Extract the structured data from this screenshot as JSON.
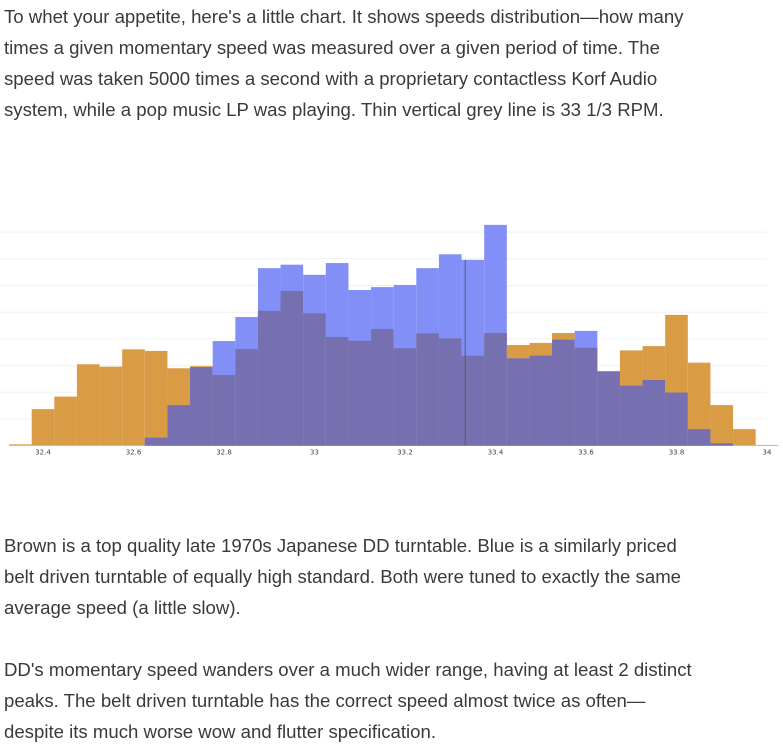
{
  "paragraphs": [
    {
      "lines": [
        "To whet your appetite, here's a little chart. It shows speeds distribution—how many",
        "times a given momentary speed was measured over a given period of time. The",
        "speed was taken 5000 times a second with a proprietary contactless Korf Audio",
        "system, while a pop music LP was playing. Thin vertical grey line is 33 1/3 RPM."
      ]
    },
    {
      "lines": [
        "Brown is a top quality late 1970s Japanese DD turntable. Blue is a similarly priced",
        "belt driven turntable of equally high standard. Both were tuned to exactly the same",
        "average speed (a little slow)."
      ]
    },
    {
      "lines": [
        "DD's momentary speed wanders over a much wider range, having at least 2 distinct",
        "peaks. The belt driven turntable has the correct speed almost twice as often—",
        "despite its much worse wow and flutter specification."
      ]
    }
  ],
  "chart_data": {
    "type": "bar",
    "subtype": "overlaid histogram",
    "bin_width": 0.05,
    "x": [
      32.35,
      32.4,
      32.45,
      32.5,
      32.55,
      32.6,
      32.65,
      32.7,
      32.75,
      32.8,
      32.85,
      32.9,
      32.95,
      33.0,
      33.05,
      33.1,
      33.15,
      33.2,
      33.25,
      33.3,
      33.35,
      33.4,
      33.45,
      33.5,
      33.55,
      33.6,
      33.65,
      33.7,
      33.75,
      33.8,
      33.85,
      33.9,
      33.95,
      34.0
    ],
    "series": [
      {
        "color": "#D99C45",
        "values": [
          0.5,
          13.7,
          18.4,
          30.5,
          29.6,
          36.1,
          35.5,
          29.0,
          29.8,
          26.5,
          36.2,
          50.5,
          58.0,
          49.6,
          40.7,
          39.3,
          43.7,
          36.5,
          42.1,
          40.2,
          33.7,
          42.2,
          37.7,
          38.5,
          42.2,
          36.7,
          28.0,
          35.7,
          37.3,
          49.0,
          31.1,
          15.2,
          6.2,
          0.3
        ]
      },
      {
        "color": "#828FF6",
        "values": [
          0,
          0,
          0,
          0,
          0,
          0,
          3.0,
          15.2,
          29.4,
          39.2,
          48.2,
          66.5,
          67.8,
          64.0,
          68.4,
          58.3,
          59.4,
          60.2,
          66.5,
          71.7,
          69.6,
          82.7,
          32.7,
          33.7,
          39.7,
          43.0,
          27.7,
          22.5,
          24.6,
          19.9,
          6.2,
          0.9,
          0,
          0
        ]
      }
    ],
    "overlap_color": "#7670B0",
    "reference_line": 33.333,
    "xticks": [
      "32.4",
      "32.6",
      "32.8",
      "33",
      "33.2",
      "33.4",
      "33.6",
      "33.8",
      "34"
    ],
    "xtick_values": [
      32.4,
      32.6,
      32.8,
      33,
      33.2,
      33.4,
      33.6,
      33.8,
      34
    ],
    "xlim": [
      32.3,
      34.0
    ],
    "ylim": [
      0,
      85
    ],
    "grid": true,
    "title": "",
    "xlabel": "",
    "ylabel": ""
  }
}
